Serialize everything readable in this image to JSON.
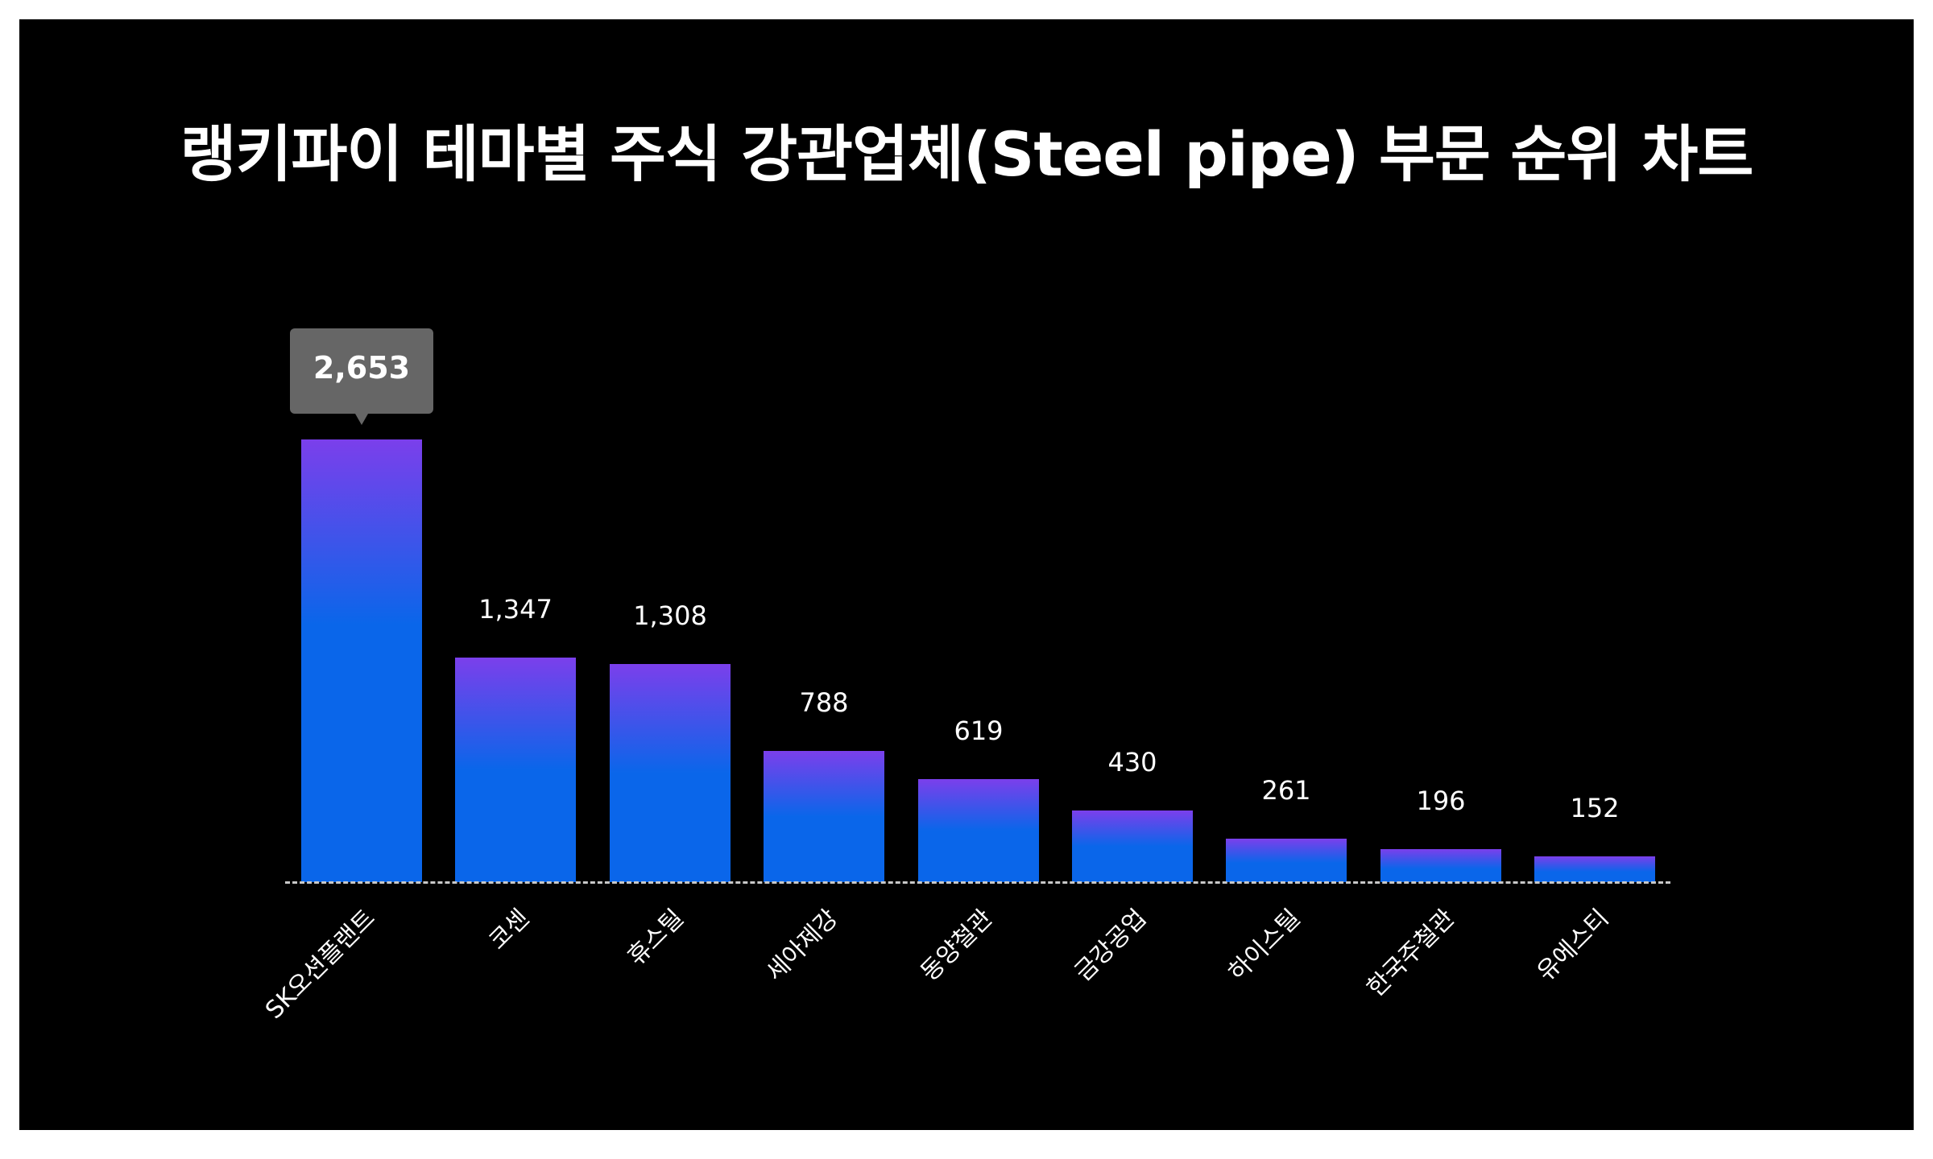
{
  "title": "랭키파이 테마별 주식 강관업체(Steel pipe) 부문 순위 차트",
  "colors": {
    "background": "#000000",
    "outer_background": "#ffffff",
    "bar_top": "#7B3FEB",
    "bar_bottom": "#0A66EA",
    "baseline": "#C8C8C8",
    "tooltip_bg": "#666666",
    "text": "#FFFFFF"
  },
  "tooltip": {
    "label": "2,653",
    "category": "SK오션플랜트"
  },
  "bars": [
    {
      "category": "SK오션플랜트",
      "value": 2653,
      "value_label": "2,653"
    },
    {
      "category": "코센",
      "value": 1347,
      "value_label": "1,347"
    },
    {
      "category": "휴스틸",
      "value": 1308,
      "value_label": "1,308"
    },
    {
      "category": "세아제강",
      "value": 788,
      "value_label": "788"
    },
    {
      "category": "동양철관",
      "value": 619,
      "value_label": "619"
    },
    {
      "category": "금강공업",
      "value": 430,
      "value_label": "430"
    },
    {
      "category": "하이스틸",
      "value": 261,
      "value_label": "261"
    },
    {
      "category": "한국주철관",
      "value": 196,
      "value_label": "196"
    },
    {
      "category": "유에스티",
      "value": 152,
      "value_label": "152"
    }
  ],
  "chart_data": {
    "type": "bar",
    "title": "랭키파이 테마별 주식 강관업체(Steel pipe) 부문 순위 차트",
    "categories": [
      "SK오션플랜트",
      "코센",
      "휴스틸",
      "세아제강",
      "동양철관",
      "금강공업",
      "하이스틸",
      "한국주철관",
      "유에스티"
    ],
    "values": [
      2653,
      1347,
      1308,
      788,
      619,
      430,
      261,
      196,
      152
    ],
    "xlabel": "",
    "ylabel": "",
    "ylim": [
      0,
      2653
    ],
    "grid": false,
    "legend": "none",
    "annotations": [
      "tooltip on SK오션플랜트: 2,653"
    ],
    "x_tick_rotation": -45
  }
}
